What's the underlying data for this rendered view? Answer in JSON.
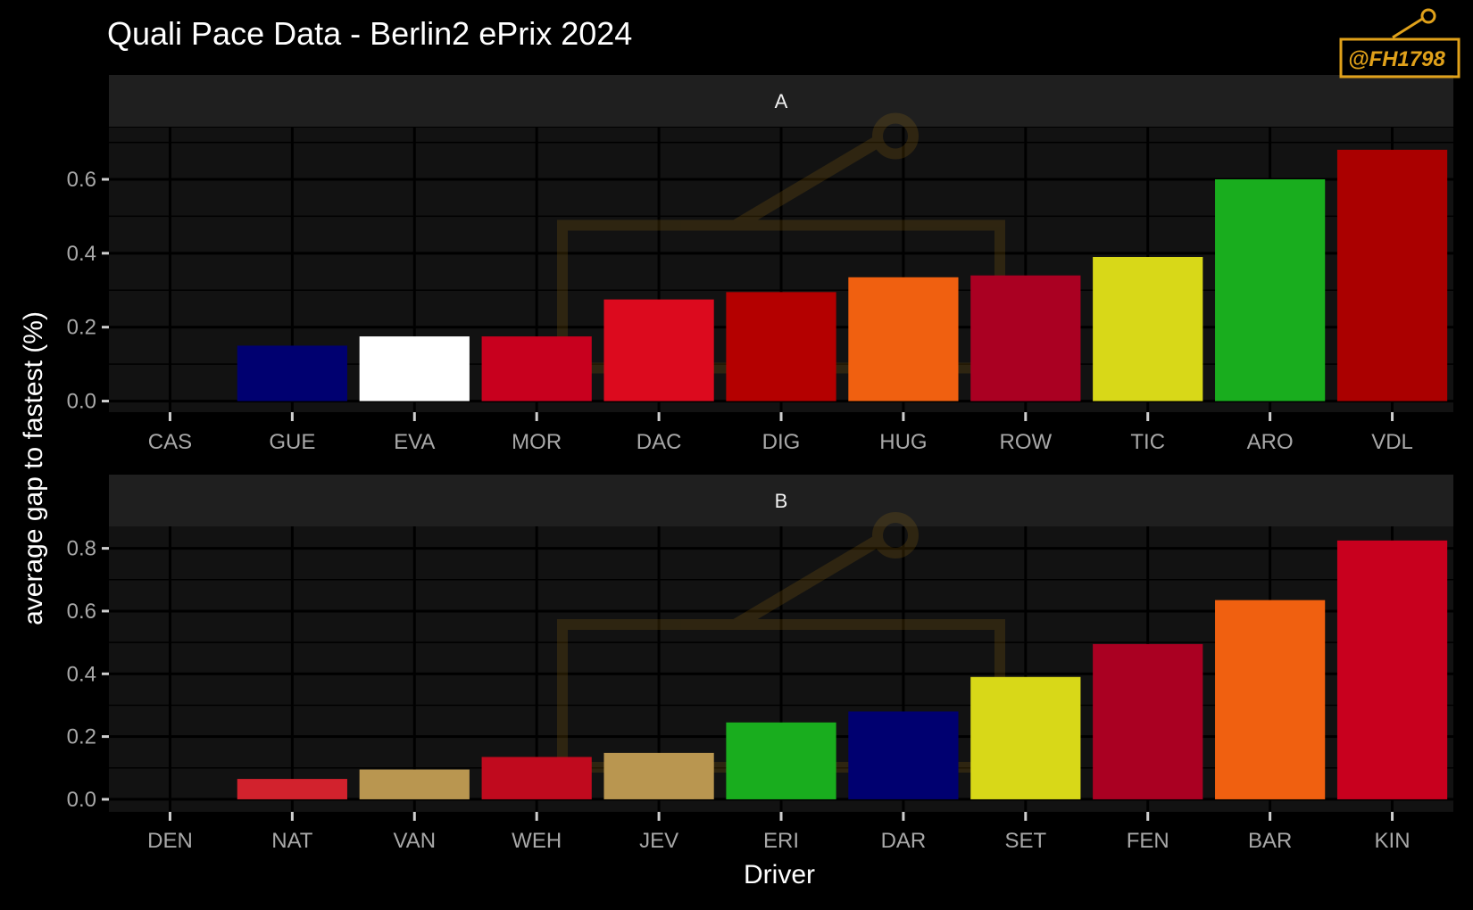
{
  "chart_data": {
    "type": "bar",
    "title": "Quali Pace Data - Berlin2 ePrix 2024",
    "xlabel": "Driver",
    "ylabel": "average gap to fastest (%)",
    "grid": true,
    "background": "#000000",
    "panel_color": "#121212",
    "strip_color": "#1f1f1f",
    "logo_text": "@FH1798",
    "logo_color": "#e0a11a",
    "panels": [
      {
        "label": "A",
        "categories": [
          "CAS",
          "GUE",
          "EVA",
          "MOR",
          "DAC",
          "DIG",
          "HUG",
          "ROW",
          "TIC",
          "ARO",
          "VDL"
        ],
        "values": [
          0.0,
          0.15,
          0.175,
          0.175,
          0.275,
          0.295,
          0.335,
          0.34,
          0.39,
          0.6,
          0.68
        ],
        "colors": [
          "#000000",
          "#000070",
          "#ffffff",
          "#c8001e",
          "#dc0a1e",
          "#b40000",
          "#f06010",
          "#aa0022",
          "#d8d818",
          "#19ad1e",
          "#aa0000"
        ],
        "ylim": [
          -0.03,
          0.74
        ],
        "yticks": [
          0.0,
          0.2,
          0.4,
          0.6
        ],
        "ytick_labels": [
          "0.0",
          "0.2",
          "0.4",
          "0.6"
        ]
      },
      {
        "label": "B",
        "categories": [
          "DEN",
          "NAT",
          "VAN",
          "WEH",
          "JEV",
          "ERI",
          "DAR",
          "SET",
          "FEN",
          "BAR",
          "KIN"
        ],
        "values": [
          0.0,
          0.065,
          0.095,
          0.135,
          0.148,
          0.245,
          0.28,
          0.39,
          0.495,
          0.635,
          0.825
        ],
        "colors": [
          "#000000",
          "#d2222d",
          "#b99650",
          "#c00a1e",
          "#b99650",
          "#19ad1e",
          "#000070",
          "#d8d818",
          "#aa0022",
          "#f06010",
          "#c8001e"
        ],
        "ylim": [
          -0.04,
          0.87
        ],
        "yticks": [
          0.0,
          0.2,
          0.4,
          0.6,
          0.8
        ],
        "ytick_labels": [
          "0.0",
          "0.2",
          "0.4",
          "0.6",
          "0.8"
        ]
      }
    ]
  }
}
